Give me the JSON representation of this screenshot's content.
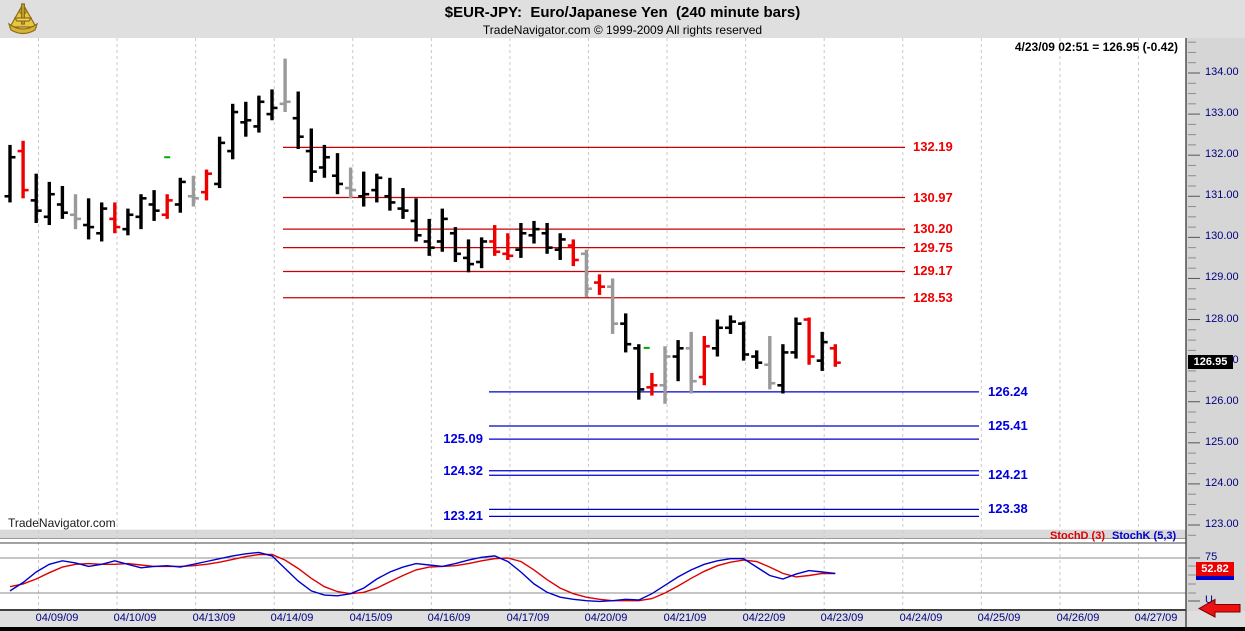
{
  "header": {
    "title": "$EUR-JPY:  Euro/Japanese Yen  (240 minute bars)",
    "subtitle": "TradeNavigator.com © 1999-2009 All rights reserved",
    "quote_info": "4/23/09 02:51 = 126.95 (-0.42)"
  },
  "watermark": "TradeNavigator.com",
  "brand_icon": "sextant-icon",
  "price_axis": {
    "labels": [
      "134.00",
      "133.00",
      "132.00",
      "131.00",
      "130.00",
      "129.00",
      "128.00",
      "127.00",
      "126.00",
      "125.00",
      "124.00",
      "123.00"
    ],
    "current_price_badge": "126.95"
  },
  "date_axis": {
    "labels": [
      "04/09/09",
      "04/10/09",
      "04/13/09",
      "04/14/09",
      "04/15/09",
      "04/16/09",
      "04/17/09",
      "04/20/09",
      "04/21/09",
      "04/22/09",
      "04/23/09",
      "04/24/09",
      "04/25/09",
      "04/26/09",
      "04/27/09"
    ]
  },
  "levels": {
    "red": [
      {
        "label": "132.19",
        "price": 132.19
      },
      {
        "label": "130.97",
        "price": 130.97
      },
      {
        "label": "130.20",
        "price": 130.2
      },
      {
        "label": "129.75",
        "price": 129.75
      },
      {
        "label": "129.17",
        "price": 129.17
      },
      {
        "label": "128.53",
        "price": 128.53
      }
    ],
    "blue": [
      {
        "label": "126.24",
        "price": 126.24,
        "side": "right"
      },
      {
        "label": "125.41",
        "price": 125.41,
        "side": "right"
      },
      {
        "label": "125.09",
        "price": 125.09,
        "side": "left"
      },
      {
        "label": "124.32",
        "price": 124.32,
        "side": "left"
      },
      {
        "label": "124.21",
        "price": 124.21,
        "side": "right"
      },
      {
        "label": "123.38",
        "price": 123.38,
        "side": "right"
      },
      {
        "label": "123.21",
        "price": 123.21,
        "side": "left"
      }
    ]
  },
  "stoch_panel": {
    "legend_d": "StochD (3)",
    "legend_k": "StochK (5,3)",
    "upper_label": "75",
    "lower_label": "U",
    "last_value_badge": "52.82"
  },
  "colors": {
    "bar_up": "#000000",
    "bar_down": "#ee0000",
    "bar_neutral": "#9a9a9a",
    "level_red": "#cc0000",
    "level_blue": "#0000cc",
    "stoch_d": "#dd0000",
    "stoch_k": "#0000cc",
    "grid": "#c9c9c9",
    "axis_text": "#000080",
    "signal_green": "#00aa00"
  },
  "chart_data": {
    "type": "bar",
    "subtype": "ohlc-bars-with-stochastic",
    "title": "$EUR-JPY:  Euro/Japanese Yen  (240 minute bars)",
    "symbol": "$EUR-JPY",
    "bar_interval": "240 minute",
    "y_axis": {
      "min": 123.0,
      "max": 134.5,
      "major_tick": 1.0,
      "minor_tick": 0.25
    },
    "stoch_axis": {
      "upper": 75,
      "lower": 25
    },
    "last_price": 126.95,
    "last_change": -0.42,
    "last_stoch_d": 52.82,
    "dates": [
      "04/09/09",
      "04/10/09",
      "04/13/09",
      "04/14/09",
      "04/15/09",
      "04/16/09",
      "04/17/09",
      "04/20/09",
      "04/21/09",
      "04/22/09",
      "04/23/09",
      "04/24/09",
      "04/25/09",
      "04/26/09",
      "04/27/09"
    ],
    "bars_per_day": 6,
    "bars": [
      [
        131.0,
        132.25,
        130.85,
        131.95,
        "k"
      ],
      [
        132.1,
        132.35,
        130.95,
        131.15,
        "r"
      ],
      [
        130.9,
        131.55,
        130.35,
        130.65,
        "k"
      ],
      [
        130.5,
        131.35,
        130.3,
        131.05,
        "k"
      ],
      [
        130.8,
        131.25,
        130.45,
        130.6,
        "k"
      ],
      [
        130.55,
        131.05,
        130.2,
        130.45,
        "g"
      ],
      [
        130.3,
        130.95,
        129.95,
        130.25,
        "k"
      ],
      [
        130.1,
        130.85,
        129.9,
        130.7,
        "k"
      ],
      [
        130.45,
        130.85,
        130.1,
        130.25,
        "r"
      ],
      [
        130.2,
        130.7,
        130.05,
        130.55,
        "k"
      ],
      [
        130.5,
        131.05,
        130.2,
        130.95,
        "k"
      ],
      [
        130.8,
        131.15,
        130.4,
        130.65,
        "k"
      ],
      [
        130.55,
        131.05,
        130.45,
        130.9,
        "r"
      ],
      [
        130.8,
        131.45,
        130.6,
        131.35,
        "k"
      ],
      [
        131.0,
        131.5,
        130.75,
        130.95,
        "g"
      ],
      [
        131.1,
        131.65,
        130.9,
        131.55,
        "r"
      ],
      [
        131.3,
        132.45,
        131.2,
        132.3,
        "k"
      ],
      [
        132.1,
        133.25,
        131.9,
        133.05,
        "k"
      ],
      [
        132.8,
        133.3,
        132.45,
        132.85,
        "k"
      ],
      [
        132.7,
        133.45,
        132.55,
        133.3,
        "k"
      ],
      [
        133.0,
        133.6,
        132.85,
        133.15,
        "k"
      ],
      [
        133.25,
        134.35,
        133.05,
        133.3,
        "g"
      ],
      [
        132.9,
        133.55,
        132.15,
        132.45,
        "k"
      ],
      [
        132.1,
        132.65,
        131.35,
        131.6,
        "k"
      ],
      [
        131.7,
        132.25,
        131.45,
        131.95,
        "k"
      ],
      [
        131.5,
        132.05,
        131.05,
        131.3,
        "k"
      ],
      [
        131.2,
        131.7,
        130.95,
        131.15,
        "g"
      ],
      [
        131.0,
        131.6,
        130.75,
        131.05,
        "k"
      ],
      [
        131.15,
        131.55,
        130.85,
        131.45,
        "k"
      ],
      [
        131.0,
        131.45,
        130.65,
        130.85,
        "k"
      ],
      [
        130.7,
        131.2,
        130.45,
        130.65,
        "k"
      ],
      [
        130.4,
        130.95,
        129.9,
        130.05,
        "k"
      ],
      [
        129.9,
        130.45,
        129.55,
        129.75,
        "k"
      ],
      [
        129.9,
        130.7,
        129.65,
        130.45,
        "k"
      ],
      [
        130.1,
        130.25,
        129.4,
        129.6,
        "k"
      ],
      [
        129.5,
        129.95,
        129.15,
        129.35,
        "k"
      ],
      [
        129.4,
        130.0,
        129.25,
        129.9,
        "k"
      ],
      [
        129.9,
        130.3,
        129.55,
        129.65,
        "r"
      ],
      [
        129.6,
        130.1,
        129.45,
        129.55,
        "r"
      ],
      [
        129.7,
        130.35,
        129.5,
        130.1,
        "k"
      ],
      [
        130.05,
        130.4,
        129.85,
        130.2,
        "k"
      ],
      [
        130.1,
        130.35,
        129.6,
        129.75,
        "k"
      ],
      [
        129.7,
        130.1,
        129.45,
        129.95,
        "k"
      ],
      [
        129.8,
        129.95,
        129.3,
        129.45,
        "r"
      ],
      [
        129.6,
        129.7,
        128.55,
        128.75,
        "g"
      ],
      [
        128.9,
        129.1,
        128.6,
        128.8,
        "r"
      ],
      [
        128.8,
        129.0,
        127.65,
        127.9,
        "g"
      ],
      [
        127.9,
        128.15,
        127.2,
        127.4,
        "k"
      ],
      [
        127.3,
        127.4,
        126.05,
        126.3,
        "k"
      ],
      [
        126.35,
        126.7,
        126.15,
        126.4,
        "r"
      ],
      [
        126.4,
        127.35,
        125.95,
        127.1,
        "g"
      ],
      [
        127.1,
        127.5,
        126.5,
        127.3,
        "k"
      ],
      [
        127.3,
        127.7,
        126.2,
        126.5,
        "g"
      ],
      [
        126.6,
        127.6,
        126.4,
        127.35,
        "r"
      ],
      [
        127.3,
        128.0,
        127.1,
        127.8,
        "k"
      ],
      [
        127.8,
        128.1,
        127.65,
        127.95,
        "k"
      ],
      [
        127.9,
        127.95,
        127.0,
        127.15,
        "k"
      ],
      [
        127.1,
        127.25,
        126.8,
        126.95,
        "k"
      ],
      [
        126.9,
        127.6,
        126.3,
        126.45,
        "g"
      ],
      [
        126.4,
        127.4,
        126.2,
        127.2,
        "k"
      ],
      [
        127.2,
        128.05,
        127.05,
        127.9,
        "k"
      ],
      [
        128.0,
        128.05,
        126.9,
        127.1,
        "r"
      ],
      [
        127.0,
        127.7,
        126.75,
        127.45,
        "k"
      ],
      [
        127.3,
        127.4,
        126.85,
        126.95,
        "r"
      ]
    ],
    "green_ticks": [
      {
        "i": 12,
        "price": 131.95
      },
      {
        "i": 48.6,
        "price": 127.31
      }
    ],
    "stoch_k": [
      28,
      40,
      55,
      66,
      71,
      68,
      63,
      66,
      71,
      66,
      61,
      63,
      64,
      62,
      66,
      70,
      74,
      78,
      81,
      83,
      78,
      60,
      42,
      28,
      22,
      21,
      24,
      32,
      45,
      55,
      62,
      67,
      65,
      63,
      67,
      72,
      76,
      78,
      70,
      55,
      38,
      26,
      19,
      16,
      14,
      13,
      14,
      16,
      15,
      24,
      36,
      48,
      58,
      66,
      71,
      74,
      74,
      62,
      50,
      45,
      52,
      57,
      55,
      53
    ],
    "stoch_d": [
      34,
      38,
      45,
      54,
      62,
      66,
      67,
      66,
      66,
      67,
      65,
      63,
      63,
      63,
      64,
      66,
      69,
      73,
      77,
      80,
      80,
      72,
      60,
      46,
      34,
      27,
      24,
      26,
      32,
      41,
      50,
      58,
      62,
      63,
      64,
      67,
      71,
      74,
      75,
      70,
      58,
      44,
      32,
      24,
      19,
      16,
      14,
      14,
      14,
      17,
      25,
      35,
      46,
      56,
      64,
      69,
      72,
      70,
      62,
      53,
      48,
      50,
      53,
      52.8
    ]
  }
}
